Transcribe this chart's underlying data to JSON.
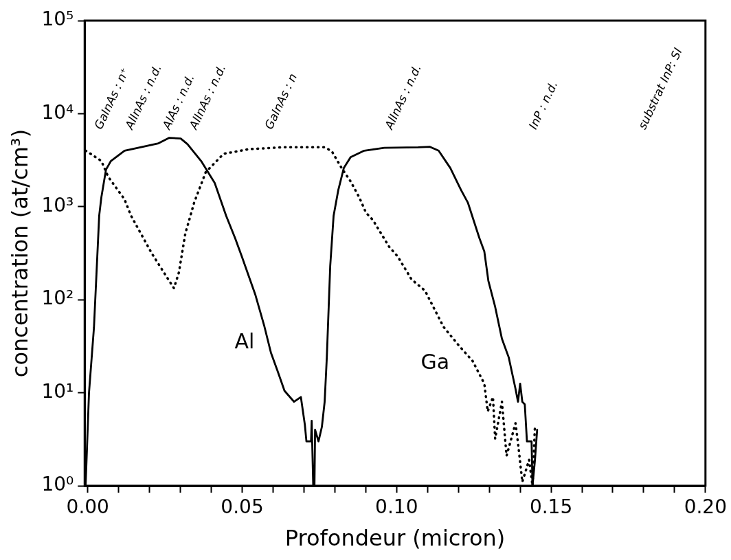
{
  "chart_data": {
    "type": "line",
    "xlabel": "Profondeur (micron)",
    "ylabel": "concentration (at/cm³)",
    "log": "y",
    "grid": false,
    "legend": false,
    "marker": "none",
    "xlim": [
      -0.001,
      0.2
    ],
    "xticks": [
      {
        "value": 0,
        "label": "0.00"
      },
      {
        "value": 0.01,
        "label": null
      },
      {
        "value": 0.02,
        "label": null
      },
      {
        "value": 0.03,
        "label": null
      },
      {
        "value": 0.04,
        "label": null
      },
      {
        "value": 0.05,
        "label": "0.05"
      },
      {
        "value": 0.06,
        "label": null
      },
      {
        "value": 0.07,
        "label": null
      },
      {
        "value": 0.08,
        "label": null
      },
      {
        "value": 0.09,
        "label": null
      },
      {
        "value": 0.1,
        "label": "0.10"
      },
      {
        "value": 0.11,
        "label": null
      },
      {
        "value": 0.12,
        "label": null
      },
      {
        "value": 0.13,
        "label": null
      },
      {
        "value": 0.14,
        "label": null
      },
      {
        "value": 0.15,
        "label": "0.15"
      },
      {
        "value": 0.16,
        "label": null
      },
      {
        "value": 0.17,
        "label": null
      },
      {
        "value": 0.18,
        "label": null
      },
      {
        "value": 0.19,
        "label": null
      },
      {
        "value": 0.2,
        "label": "0.20"
      }
    ],
    "ylim": [
      1,
      100000
    ],
    "yticks": [
      {
        "value": 1,
        "label": "10⁰"
      },
      {
        "value": 10,
        "label": "10¹"
      },
      {
        "value": 100,
        "label": "10²"
      },
      {
        "value": 1000,
        "label": "10³"
      },
      {
        "value": 10000,
        "label": "10⁴"
      },
      {
        "value": 100000,
        "label": "10⁵"
      }
    ],
    "series": [
      {
        "name": "Al",
        "color": "#000000",
        "line_style": "solid",
        "x": [
          -0.0007,
          0.0004,
          0.002,
          0.0037,
          0.0044,
          0.0059,
          0.0075,
          0.0119,
          0.0191,
          0.0229,
          0.0264,
          0.0301,
          0.0323,
          0.0367,
          0.0411,
          0.0448,
          0.0477,
          0.0499,
          0.0543,
          0.0558,
          0.0571,
          0.0593,
          0.0615,
          0.0637,
          0.0668,
          0.069,
          0.0703,
          0.0708,
          0.0723,
          0.0725,
          0.073,
          0.0734,
          0.0736,
          0.0747,
          0.0758,
          0.0767,
          0.0774,
          0.0785,
          0.0796,
          0.0811,
          0.0829,
          0.0851,
          0.0895,
          0.096,
          0.107,
          0.1108,
          0.1136,
          0.1174,
          0.1209,
          0.1231,
          0.1268,
          0.1284,
          0.1297,
          0.1319,
          0.1341,
          0.1363,
          0.1385,
          0.1393,
          0.14,
          0.1407,
          0.1415,
          0.1422,
          0.1437,
          0.144,
          0.1448,
          0.1455
        ],
        "values": [
          1,
          10,
          50,
          800,
          1260,
          2500,
          3100,
          4000,
          4500,
          4800,
          5500,
          5400,
          4700,
          3100,
          1800,
          800,
          460,
          290,
          112,
          75,
          53,
          27,
          17,
          10.5,
          8,
          9,
          4.5,
          3,
          3,
          5,
          1,
          1,
          4,
          3,
          4.3,
          8,
          24,
          230,
          800,
          1500,
          2600,
          3400,
          4000,
          4300,
          4350,
          4400,
          4000,
          2600,
          1500,
          1100,
          460,
          330,
          160,
          84,
          38,
          24,
          11,
          8,
          12.5,
          8,
          7.5,
          3,
          3,
          1,
          1.9,
          4
        ]
      },
      {
        "name": "Ga",
        "color": "#000000",
        "line_style": "dotted",
        "x": [
          -0.0007,
          0.0004,
          0.0044,
          0.0066,
          0.0119,
          0.014,
          0.0207,
          0.0242,
          0.0279,
          0.0295,
          0.0316,
          0.0345,
          0.0382,
          0.044,
          0.0521,
          0.0631,
          0.0769,
          0.0791,
          0.0822,
          0.0851,
          0.0879,
          0.0901,
          0.0923,
          0.0976,
          0.1004,
          0.1048,
          0.1092,
          0.1152,
          0.1202,
          0.1246,
          0.1284,
          0.1295,
          0.1312,
          0.1319,
          0.1341,
          0.1356,
          0.1385,
          0.1393,
          0.1407,
          0.1429,
          0.144,
          0.1448
        ],
        "values": [
          4000,
          3800,
          3100,
          2100,
          1200,
          800,
          316,
          207,
          133,
          196,
          516,
          1120,
          2350,
          3700,
          4150,
          4350,
          4350,
          3900,
          2600,
          1870,
          1260,
          860,
          720,
          370,
          290,
          166,
          125,
          51,
          32,
          22,
          12.5,
          6.3,
          9,
          3.2,
          8,
          2.1,
          4.7,
          2.9,
          1.1,
          1.9,
          1,
          4.5
        ]
      }
    ],
    "annotations": [
      "GaInAs : n⁺",
      "AlInAs : n.d.",
      "AlAs : n.d.",
      "AlInAs : n.d.",
      "GaInAs : n",
      "AlInAs : n.d.",
      "InP : n.d.",
      "substrat InP: SI"
    ]
  }
}
